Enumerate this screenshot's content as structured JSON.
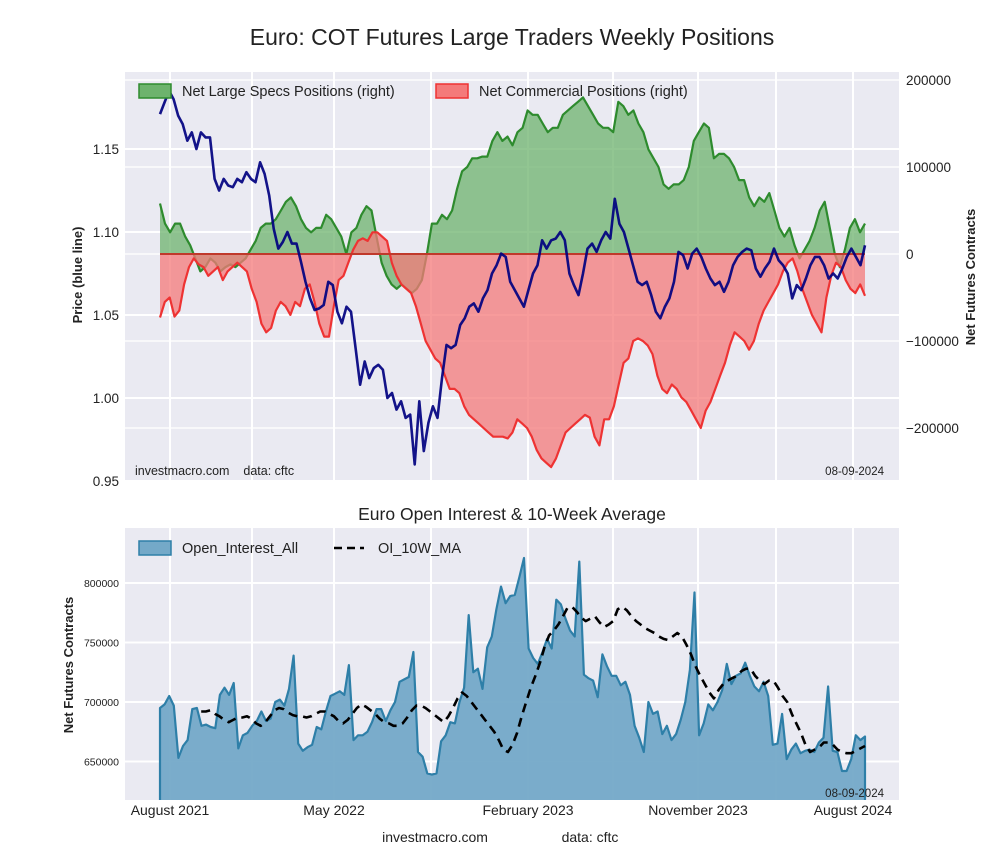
{
  "chart_data": [
    {
      "type": "area",
      "title": "Euro: COT Futures Large Traders Weekly Positions",
      "ylabel_left": "Price (blue line)",
      "ylabel_right": "Net Futures Contracts",
      "left_ylim": [
        0.95,
        1.19
      ],
      "right_ylim": [
        -255000,
        200000
      ],
      "left_ticks": [
        "0.95",
        "1.00",
        "1.05",
        "1.10",
        "1.15"
      ],
      "right_ticks": [
        "200000",
        "100000",
        "0",
        "−100000",
        "−200000"
      ],
      "legend": [
        "Net Large Specs Positions (right)",
        "Net Commercial Positions (right)"
      ],
      "legend_placement": "top-left",
      "watermark_left": "investmacro.com    data: cftc",
      "watermark_right": "08-09-2024",
      "colors": {
        "specs": "#2e8b2e",
        "specs_fill": "#6db36d",
        "commercial": "#ee3333",
        "commercial_fill": "#f47a7a",
        "price": "#000080"
      },
      "x_start": "2021-07-20",
      "x_end": "2024-08-06",
      "series": [
        {
          "name": "Net Large Specs Positions",
          "values": [
            58000,
            35000,
            25000,
            35000,
            35000,
            20000,
            10000,
            -5000,
            -20000,
            -15000,
            -5000,
            -10000,
            -20000,
            -15000,
            -12000,
            -15000,
            -10000,
            -5000,
            5000,
            15000,
            30000,
            35000,
            35000,
            40000,
            50000,
            60000,
            65000,
            55000,
            40000,
            30000,
            25000,
            30000,
            30000,
            45000,
            40000,
            30000,
            20000,
            0,
            25000,
            30000,
            45000,
            55000,
            50000,
            20000,
            -10000,
            -25000,
            -35000,
            -40000,
            -35000,
            -40000,
            -45000,
            -40000,
            -30000,
            0,
            35000,
            35000,
            45000,
            40000,
            50000,
            75000,
            95000,
            100000,
            110000,
            110000,
            112000,
            112000,
            130000,
            140000,
            130000,
            135000,
            125000,
            140000,
            145000,
            165000,
            160000,
            160000,
            150000,
            140000,
            145000,
            145000,
            160000,
            165000,
            170000,
            175000,
            180000,
            170000,
            160000,
            150000,
            145000,
            145000,
            140000,
            175000,
            170000,
            160000,
            165000,
            150000,
            140000,
            120000,
            110000,
            100000,
            80000,
            75000,
            80000,
            80000,
            85000,
            100000,
            130000,
            140000,
            150000,
            145000,
            110000,
            115000,
            115000,
            110000,
            100000,
            85000,
            85000,
            65000,
            55000,
            65000,
            60000,
            70000,
            50000,
            30000,
            20000,
            30000,
            10000,
            -5000,
            5000,
            15000,
            30000,
            50000,
            60000,
            30000,
            0,
            -15000,
            5000,
            30000,
            40000,
            25000,
            35000
          ]
        },
        {
          "name": "Net Commercial Positions",
          "values": [
            -73000,
            -55000,
            -50000,
            -72000,
            -65000,
            -35000,
            -15000,
            -5000,
            -12000,
            -15000,
            -25000,
            -20000,
            -15000,
            -30000,
            -20000,
            -15000,
            -10000,
            -15000,
            -20000,
            -40000,
            -55000,
            -80000,
            -90000,
            -85000,
            -65000,
            -55000,
            -60000,
            -70000,
            -55000,
            -60000,
            -40000,
            -35000,
            -55000,
            -80000,
            -95000,
            -95000,
            -60000,
            -30000,
            -25000,
            -10000,
            5000,
            15000,
            18000,
            15000,
            25000,
            25000,
            20000,
            15000,
            -10000,
            -25000,
            -35000,
            -40000,
            -45000,
            -60000,
            -80000,
            -100000,
            -110000,
            -120000,
            -125000,
            -140000,
            -155000,
            -155000,
            -160000,
            -175000,
            -185000,
            -190000,
            -195000,
            -200000,
            -205000,
            -210000,
            -210000,
            -210000,
            -212000,
            -205000,
            -190000,
            -195000,
            -200000,
            -210000,
            -225000,
            -235000,
            -240000,
            -245000,
            -235000,
            -220000,
            -205000,
            -200000,
            -195000,
            -190000,
            -185000,
            -188000,
            -210000,
            -220000,
            -190000,
            -190000,
            -175000,
            -150000,
            -125000,
            -120000,
            -100000,
            -97000,
            -100000,
            -105000,
            -115000,
            -140000,
            -155000,
            -160000,
            -150000,
            -155000,
            -165000,
            -170000,
            -180000,
            -190000,
            -200000,
            -180000,
            -170000,
            -155000,
            -140000,
            -125000,
            -105000,
            -90000,
            -95000,
            -100000,
            -110000,
            -100000,
            -80000,
            -65000,
            -55000,
            -45000,
            -35000,
            -20000,
            -10000,
            -5000,
            -20000,
            -40000,
            -55000,
            -70000,
            -80000,
            -90000,
            -50000,
            -25000,
            -10000,
            -15000,
            -30000,
            -40000,
            -45000,
            -35000,
            -48000
          ]
        },
        {
          "name": "Price",
          "values": [
            1.171,
            1.178,
            1.185,
            1.18,
            1.17,
            1.165,
            1.155,
            1.16,
            1.15,
            1.16,
            1.157,
            1.157,
            1.132,
            1.125,
            1.132,
            1.128,
            1.127,
            1.132,
            1.13,
            1.136,
            1.132,
            1.13,
            1.142,
            1.135,
            1.122,
            1.102,
            1.09,
            1.094,
            1.1,
            1.093,
            1.093,
            1.082,
            1.07,
            1.06,
            1.053,
            1.054,
            1.056,
            1.07,
            1.068,
            1.052,
            1.045,
            1.055,
            1.052,
            1.03,
            1.008,
            1.022,
            1.012,
            1.018,
            1.02,
            1.017,
            1.0,
            1.003,
            0.993,
            0.998,
            0.988,
            0.99,
            0.96,
            0.998,
            0.968,
            0.985,
            0.995,
            0.988,
            1.012,
            1.032,
            1.03,
            1.032,
            1.044,
            1.048,
            1.055,
            1.057,
            1.052,
            1.06,
            1.065,
            1.075,
            1.08,
            1.087,
            1.085,
            1.07,
            1.065,
            1.06,
            1.055,
            1.065,
            1.075,
            1.08,
            1.095,
            1.09,
            1.095,
            1.096,
            1.1,
            1.095,
            1.075,
            1.068,
            1.062,
            1.075,
            1.09,
            1.093,
            1.088,
            1.095,
            1.1,
            1.096,
            1.12,
            1.105,
            1.1,
            1.09,
            1.08,
            1.07,
            1.068,
            1.07,
            1.062,
            1.052,
            1.048,
            1.055,
            1.06,
            1.07,
            1.088,
            1.086,
            1.078,
            1.087,
            1.09,
            1.085,
            1.078,
            1.072,
            1.068,
            1.07,
            1.064,
            1.07,
            1.08,
            1.085,
            1.088,
            1.09,
            1.089,
            1.078,
            1.073,
            1.078,
            1.082,
            1.09,
            1.083,
            1.08,
            1.075,
            1.06,
            1.068,
            1.065,
            1.072,
            1.08,
            1.085,
            1.085,
            1.08,
            1.072,
            1.075,
            1.072,
            1.078,
            1.085,
            1.09,
            1.085,
            1.08,
            1.092
          ]
        }
      ]
    },
    {
      "type": "area",
      "title": "Euro Open Interest & 10-Week Average",
      "ylabel": "Net Futures Contracts",
      "ylim": [
        620000,
        845000
      ],
      "yticks": [
        "650000",
        "700000",
        "750000",
        "800000"
      ],
      "xticks": [
        "August 2021",
        "May 2022",
        "February 2023",
        "November 2023",
        "August 2024"
      ],
      "legend": [
        "Open_Interest_All",
        "OI_10W_MA"
      ],
      "legend_placement": "top-left",
      "watermark_right": "08-09-2024",
      "colors": {
        "oi_line": "#2e7fa8",
        "oi_fill": "#74a9c8",
        "ma": "#000000"
      },
      "series": [
        {
          "name": "Open_Interest_All",
          "values": [
            695000,
            698000,
            705000,
            697000,
            653000,
            663000,
            668000,
            694000,
            695000,
            680000,
            681000,
            679000,
            678000,
            706000,
            712000,
            706000,
            716000,
            661000,
            672000,
            674000,
            680000,
            684000,
            692000,
            684000,
            686000,
            700000,
            702000,
            697000,
            711000,
            739000,
            665000,
            659000,
            662000,
            664000,
            679000,
            677000,
            692000,
            705000,
            707000,
            709000,
            706000,
            731000,
            668000,
            672000,
            672000,
            675000,
            683000,
            694000,
            694000,
            684000,
            693000,
            700000,
            717000,
            719000,
            721000,
            742000,
            658000,
            654000,
            640000,
            639000,
            640000,
            667000,
            672000,
            683000,
            682000,
            700000,
            712000,
            773000,
            725000,
            728000,
            711000,
            746000,
            755000,
            778000,
            797000,
            783000,
            789000,
            790000,
            805000,
            821000,
            745000,
            737000,
            732000,
            742000,
            753000,
            745000,
            786000,
            782000,
            770000,
            760000,
            755000,
            818000,
            723000,
            720000,
            718000,
            704000,
            740000,
            730000,
            722000,
            722000,
            714000,
            717000,
            706000,
            680000,
            670000,
            658000,
            700000,
            690000,
            692000,
            673000,
            680000,
            668000,
            673000,
            685000,
            700000,
            727000,
            792000,
            672000,
            682000,
            698000,
            693000,
            700000,
            710000,
            732000,
            715000,
            722000,
            724000,
            733000,
            722000,
            713000,
            709000,
            717000,
            705000,
            664000,
            665000,
            690000,
            652000,
            660000,
            665000,
            657000,
            659000,
            660000,
            658000,
            666000,
            670000,
            713000,
            659000,
            658000,
            642000,
            642000,
            652000,
            672000,
            668000,
            671000
          ]
        },
        {
          "name": "OI_10W_MA",
          "values": [
            null,
            null,
            null,
            null,
            null,
            null,
            null,
            null,
            null,
            692000,
            692000,
            693000,
            690000,
            688000,
            685000,
            683000,
            685000,
            687000,
            687000,
            688000,
            686000,
            682000,
            680000,
            683000,
            688000,
            693000,
            695000,
            694000,
            691000,
            689000,
            688000,
            688000,
            687000,
            688000,
            690000,
            692000,
            692000,
            690000,
            688000,
            684000,
            682000,
            685000,
            690000,
            695000,
            698000,
            696000,
            693000,
            690000,
            686000,
            683000,
            682000,
            680000,
            680000,
            682000,
            687000,
            693000,
            697000,
            697000,
            695000,
            692000,
            689000,
            686000,
            683000,
            688000,
            695000,
            703000,
            708000,
            705000,
            700000,
            695000,
            690000,
            685000,
            680000,
            675000,
            668000,
            660000,
            658000,
            664000,
            674000,
            688000,
            700000,
            712000,
            722000,
            733000,
            746000,
            756000,
            760000,
            765000,
            772000,
            779000,
            780000,
            776000,
            771000,
            768000,
            770000,
            772000,
            767000,
            763000,
            765000,
            768000,
            778000,
            780000,
            777000,
            772000,
            768000,
            765000,
            762000,
            760000,
            758000,
            755000,
            753000,
            752000,
            755000,
            758000,
            755000,
            748000,
            740000,
            730000,
            722000,
            715000,
            708000,
            703000,
            710000,
            715000,
            718000,
            720000,
            722000,
            726000,
            728000,
            728000,
            722000,
            718000,
            715000,
            718000,
            718000,
            712000,
            705000,
            700000,
            690000,
            682000,
            674000,
            664000,
            658000,
            660000,
            662000,
            666000,
            666000,
            664000,
            660000,
            658000,
            657000,
            657000,
            659000,
            661000,
            663000
          ]
        }
      ]
    }
  ],
  "footer": {
    "site": "investmacro.com",
    "source": "data: cftc"
  }
}
